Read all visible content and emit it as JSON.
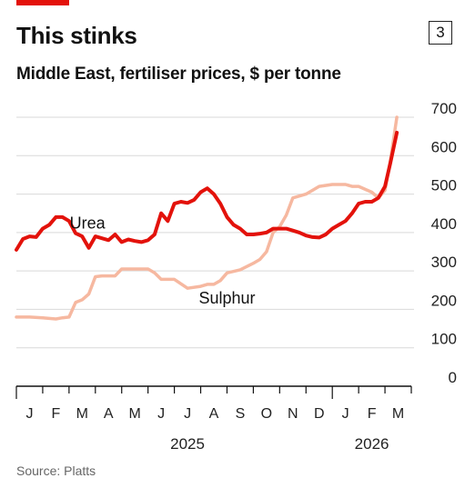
{
  "header": {
    "title": "This stinks",
    "chart_number": "3",
    "subtitle": "Middle East, fertiliser prices, $ per tonne"
  },
  "footer": {
    "source": "Source: Platts"
  },
  "colors": {
    "urea": "#e3120b",
    "sulphur": "#f6b8a0",
    "grid": "#d9d9d9",
    "brand": "#e3120b"
  },
  "chart_data": {
    "type": "line",
    "title": "This stinks",
    "subtitle": "Middle East, fertiliser prices, $ per tonne",
    "ylim": [
      0,
      700
    ],
    "yticks": [
      0,
      100,
      200,
      300,
      400,
      500,
      600,
      700
    ],
    "y_axis_side": "right",
    "grid": true,
    "x_unit": "months since Jan 2025",
    "xlim": [
      0,
      15
    ],
    "xtick_labels": [
      "J",
      "F",
      "M",
      "A",
      "M",
      "J",
      "J",
      "A",
      "S",
      "O",
      "N",
      "D",
      "J",
      "F",
      "M"
    ],
    "year_labels": [
      {
        "label": "2025",
        "x": 6.5
      },
      {
        "label": "2026",
        "x": 13.5
      }
    ],
    "series": [
      {
        "name": "Urea",
        "label_at": [
          2.7,
          410
        ],
        "x": [
          0,
          0.25,
          0.5,
          0.75,
          1.0,
          1.25,
          1.5,
          1.75,
          2.0,
          2.25,
          2.5,
          2.75,
          3.0,
          3.25,
          3.5,
          3.75,
          4.0,
          4.25,
          4.5,
          4.75,
          5.0,
          5.25,
          5.5,
          5.75,
          6.0,
          6.25,
          6.5,
          6.75,
          7.0,
          7.25,
          7.5,
          7.75,
          8.0,
          8.25,
          8.5,
          8.75,
          9.0,
          9.25,
          9.5,
          9.75,
          10.0,
          10.25,
          10.5,
          10.75,
          11.0,
          11.25,
          11.5,
          11.75,
          12.0,
          12.25,
          12.5,
          12.75,
          13.0,
          13.25,
          13.5,
          13.75,
          14.0,
          14.2,
          14.45
        ],
        "y": [
          355,
          383,
          390,
          388,
          410,
          420,
          440,
          440,
          430,
          398,
          390,
          360,
          390,
          385,
          380,
          395,
          375,
          382,
          378,
          375,
          380,
          395,
          450,
          430,
          475,
          480,
          477,
          485,
          505,
          515,
          500,
          475,
          440,
          420,
          410,
          395,
          395,
          397,
          400,
          410,
          410,
          410,
          405,
          400,
          392,
          388,
          387,
          395,
          410,
          420,
          430,
          450,
          475,
          480,
          480,
          490,
          520,
          580,
          660
        ]
      },
      {
        "name": "Sulphur",
        "label_at": [
          8.0,
          215
        ],
        "x": [
          0,
          0.5,
          1.0,
          1.5,
          1.75,
          2.0,
          2.25,
          2.5,
          2.75,
          3.0,
          3.25,
          3.5,
          3.75,
          4.0,
          4.5,
          5.0,
          5.25,
          5.5,
          5.75,
          6.0,
          6.5,
          7.0,
          7.25,
          7.5,
          7.75,
          8.0,
          8.5,
          9.0,
          9.25,
          9.5,
          9.75,
          10.0,
          10.25,
          10.5,
          11.0,
          11.5,
          12.0,
          12.5,
          12.75,
          13.0,
          13.5,
          13.75,
          14.0,
          14.2,
          14.45
        ],
        "y": [
          180,
          180,
          178,
          175,
          178,
          180,
          218,
          225,
          240,
          285,
          287,
          287,
          287,
          305,
          305,
          305,
          295,
          278,
          278,
          278,
          255,
          260,
          265,
          265,
          275,
          295,
          303,
          320,
          330,
          350,
          400,
          415,
          445,
          490,
          500,
          520,
          525,
          525,
          520,
          520,
          505,
          490,
          510,
          585,
          700
        ]
      }
    ]
  }
}
